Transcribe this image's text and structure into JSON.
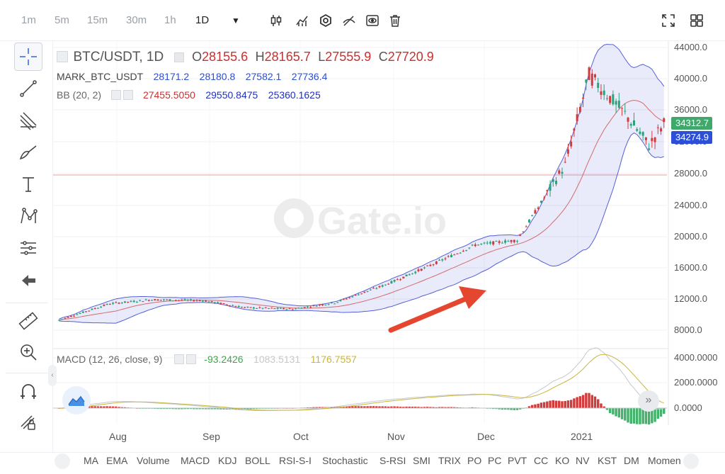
{
  "timeframes": [
    "1m",
    "5m",
    "15m",
    "30m",
    "1h",
    "1D"
  ],
  "active_timeframe": "1D",
  "symbol": "BTC/USDT, 1D",
  "ohlc": {
    "o_label": "O",
    "o": "28155.6",
    "h_label": "H",
    "h": "28165.7",
    "l_label": "L",
    "l": "27555.9",
    "c_label": "C",
    "c": "27720.9"
  },
  "mark": {
    "label": "MARK_BTC_USDT",
    "values": [
      "28171.2",
      "28180.8",
      "27582.1",
      "27736.4"
    ]
  },
  "bb": {
    "label": "BB (20, 2)",
    "values": [
      "27455.5050",
      "29550.8475",
      "25360.1625"
    ]
  },
  "macd": {
    "label": "MACD (12, 26, close, 9)",
    "values": [
      "-93.2426",
      "1083.5131",
      "1176.7557"
    ]
  },
  "watermark": "Gate.io",
  "price_axis": [
    "44000.0",
    "40000.0",
    "36000.0",
    "32000.0",
    "28000.0",
    "24000.0",
    "20000.0",
    "16000.0",
    "12000.0",
    "8000.0"
  ],
  "macd_axis": [
    "4000.0000",
    "2000.0000",
    "0.0000"
  ],
  "time_axis": [
    "Aug",
    "Sep",
    "Oct",
    "Nov",
    "Dec",
    "2021"
  ],
  "badges": [
    {
      "value": "34312.7",
      "color": "#3fa86a"
    },
    {
      "value": "34274.9",
      "color": "#2d4fd8"
    }
  ],
  "indicators": [
    "MA",
    "EMA",
    "Volume",
    "MACD",
    "KDJ",
    "BOLL",
    "RSI-S-I",
    "Stochastic",
    "S-RSI",
    "SMI",
    "TRIX",
    "PO",
    "PC",
    "PVT",
    "CC",
    "KO",
    "NV",
    "KST",
    "DM",
    "Momen"
  ],
  "colors": {
    "up": "#2aa27a",
    "down": "#d23b3b",
    "bb_band": "#5560d6",
    "bb_mid": "#d46b6b",
    "arrow": "#e4462f",
    "macd_green": "#43b26b",
    "macd_gray": "#c5c7cc",
    "macd_yellow": "#c9b53c"
  },
  "chart_data": {
    "type": "candlestick",
    "symbol": "BTC/USDT",
    "interval": "1D",
    "ylim": [
      6000,
      46000
    ],
    "approx_closes": [
      {
        "date": "2020-07-15",
        "close": 9200
      },
      {
        "date": "2020-08-01",
        "close": 11300
      },
      {
        "date": "2020-08-15",
        "close": 11800
      },
      {
        "date": "2020-09-01",
        "close": 11700
      },
      {
        "date": "2020-09-15",
        "close": 10800
      },
      {
        "date": "2020-10-01",
        "close": 10600
      },
      {
        "date": "2020-10-15",
        "close": 11400
      },
      {
        "date": "2020-11-01",
        "close": 13700
      },
      {
        "date": "2020-11-15",
        "close": 16000
      },
      {
        "date": "2020-12-01",
        "close": 18800
      },
      {
        "date": "2020-12-15",
        "close": 19400
      },
      {
        "date": "2020-12-31",
        "close": 29000
      },
      {
        "date": "2021-01-08",
        "close": 40500
      },
      {
        "date": "2021-01-20",
        "close": 35500
      },
      {
        "date": "2021-01-28",
        "close": 31500
      },
      {
        "date": "2021-02-02",
        "close": 34300
      }
    ]
  }
}
